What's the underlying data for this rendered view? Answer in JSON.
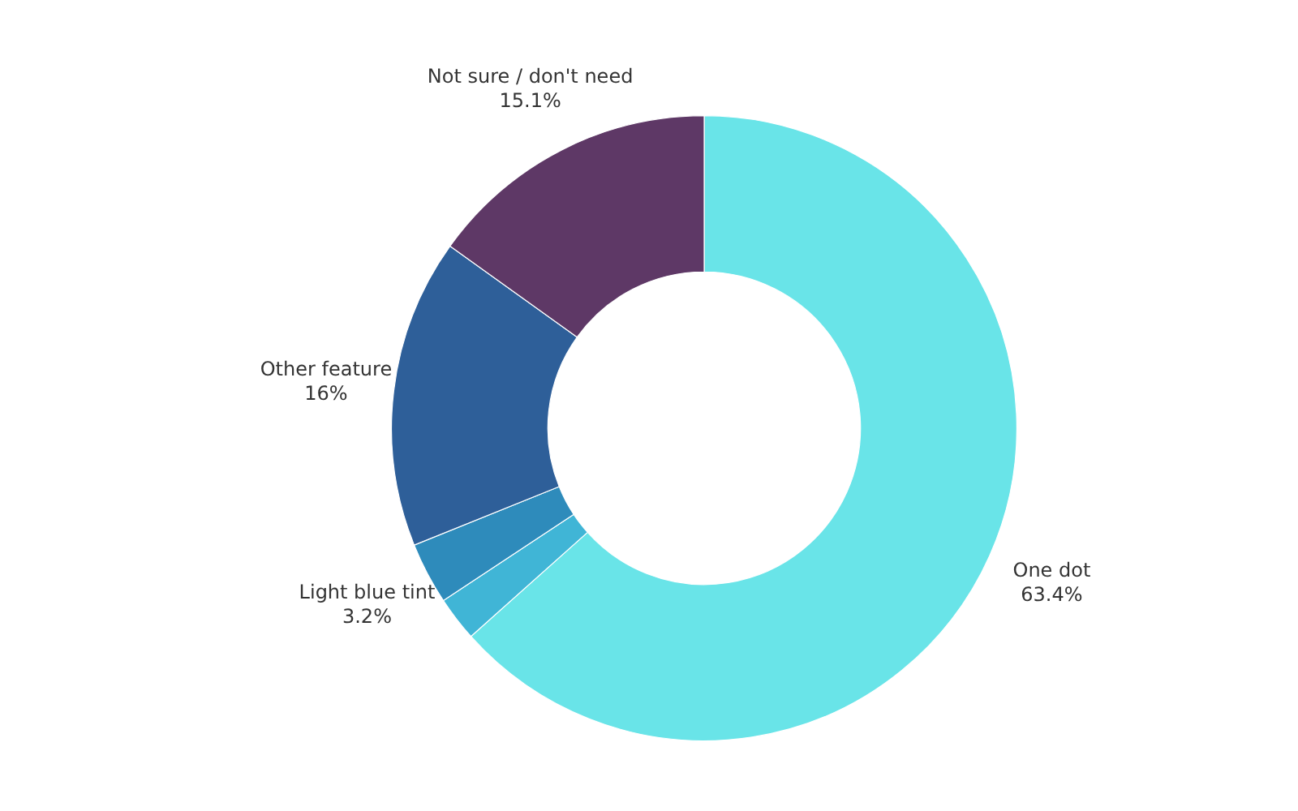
{
  "chart_data": {
    "type": "donut",
    "categories": [
      "One dot",
      null,
      "Light blue tint",
      "Other feature",
      "Not sure / don't need"
    ],
    "values": [
      63.4,
      2.3,
      3.2,
      16,
      15.1
    ],
    "colors": [
      "#69e4e8",
      "#40b5d6",
      "#2e8bbb",
      "#2e5f99",
      "#5e3866"
    ],
    "value_labels": [
      "63.4%",
      null,
      "3.2%",
      "16%",
      "15.1%"
    ]
  }
}
